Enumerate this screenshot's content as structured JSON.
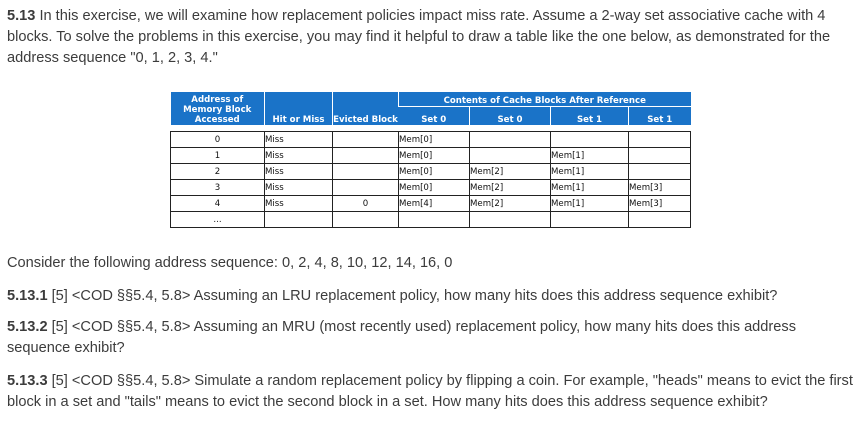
{
  "intro": {
    "number": "5.13",
    "text": " In this exercise, we will examine how replacement policies impact miss rate. Assume a 2-way set associative cache with 4 blocks. To solve the problems in this exercise, you may find it helpful to draw a table like the one below, as demonstrated for the address sequence \"0, 1, 2, 3, 4.\""
  },
  "table": {
    "headers": {
      "address": "Address of Memory Block Accessed",
      "hit_or_miss": "Hit or Miss",
      "evicted": "Evicted Block",
      "contents": "Contents of Cache Blocks After Reference",
      "set_cols": [
        "Set 0",
        "Set 0",
        "Set 1",
        "Set 1"
      ]
    },
    "rows": [
      {
        "addr": "0",
        "hm": "Miss",
        "ev": "",
        "s0a": "Mem[0]",
        "s0b": "",
        "s1a": "",
        "s1b": ""
      },
      {
        "addr": "1",
        "hm": "Miss",
        "ev": "",
        "s0a": "Mem[0]",
        "s0b": "",
        "s1a": "Mem[1]",
        "s1b": ""
      },
      {
        "addr": "2",
        "hm": "Miss",
        "ev": "",
        "s0a": "Mem[0]",
        "s0b": "Mem[2]",
        "s1a": "Mem[1]",
        "s1b": ""
      },
      {
        "addr": "3",
        "hm": "Miss",
        "ev": "",
        "s0a": "Mem[0]",
        "s0b": "Mem[2]",
        "s1a": "Mem[1]",
        "s1b": "Mem[3]"
      },
      {
        "addr": "4",
        "hm": "Miss",
        "ev": "0",
        "s0a": "Mem[4]",
        "s0b": "Mem[2]",
        "s1a": "Mem[1]",
        "s1b": "Mem[3]"
      },
      {
        "addr": "...",
        "hm": "",
        "ev": "",
        "s0a": "",
        "s0b": "",
        "s1a": "",
        "s1b": ""
      }
    ]
  },
  "consider": "Consider the following address sequence: 0, 2, 4, 8, 10, 12, 14, 16, 0",
  "questions": [
    {
      "number": "5.13.1",
      "text": " [5] <COD §§5.4, 5.8> Assuming an LRU replacement policy, how many hits does this address sequence exhibit?"
    },
    {
      "number": "5.13.2",
      "text": " [5] <COD §§5.4, 5.8> Assuming an MRU (most recently used) replacement policy, how many hits does this address sequence exhibit?"
    },
    {
      "number": "5.13.3",
      "text": " [5] <COD §§5.4, 5.8> Simulate a random replacement policy by flipping a coin. For example, \"heads\" means to evict the first block in a set and \"tails\" means to evict the second block in a set. How many hits does this address sequence exhibit?"
    }
  ]
}
